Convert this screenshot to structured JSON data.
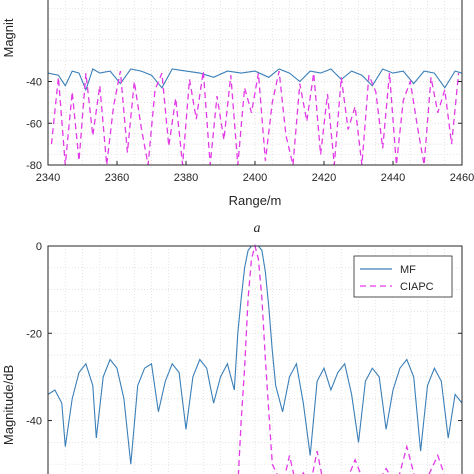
{
  "colors": {
    "mf": "#3a7fb8",
    "ciapc": "#e23ae6",
    "grid": "#d9d9d9",
    "axis": "#262626"
  },
  "chart_data": [
    {
      "type": "line",
      "panel_label": "",
      "title": "",
      "xlabel": "Range/m",
      "ylabel": "Magnit",
      "xlim": [
        2340,
        2460
      ],
      "ylim": [
        -80,
        0
      ],
      "grid": true,
      "x_ticks": [
        2340,
        2360,
        2380,
        2400,
        2420,
        2440,
        2460
      ],
      "x_tick_labels": [
        "2340",
        "2360",
        "2380",
        "2400",
        "2420",
        "2440",
        "2460"
      ],
      "y_ticks": [
        -40,
        -60,
        -80
      ],
      "y_tick_labels": [
        "-40",
        "-60",
        "-80"
      ],
      "series": [
        {
          "name": "MF",
          "style": "solid",
          "x": [
            2340,
            2343,
            2345,
            2347,
            2349,
            2351,
            2353,
            2355,
            2358,
            2361,
            2364,
            2367,
            2370,
            2373,
            2376,
            2380,
            2384,
            2388,
            2392,
            2396,
            2400,
            2404,
            2407,
            2410,
            2413,
            2416,
            2419,
            2422,
            2425,
            2428,
            2431,
            2434,
            2437,
            2440,
            2443,
            2446,
            2449,
            2452,
            2455,
            2458,
            2460
          ],
          "y": [
            -36,
            -37,
            -42,
            -35,
            -36,
            -44,
            -34,
            -36,
            -35,
            -41,
            -34,
            -35,
            -37,
            -43,
            -34,
            -35,
            -36,
            -38,
            -35,
            -36,
            -35,
            -38,
            -34,
            -36,
            -40,
            -35,
            -36,
            -34,
            -39,
            -35,
            -37,
            -42,
            -34,
            -36,
            -35,
            -41,
            -35,
            -36,
            -43,
            -35,
            -36
          ]
        },
        {
          "name": "CIAPC",
          "style": "dashed",
          "x": [
            2341,
            2343,
            2345,
            2347,
            2349,
            2351,
            2353,
            2355,
            2357,
            2359,
            2361,
            2363,
            2365,
            2367,
            2369,
            2371,
            2373,
            2375,
            2377,
            2379,
            2381,
            2383,
            2385,
            2387,
            2389,
            2391,
            2393,
            2395,
            2397,
            2399,
            2401,
            2403,
            2405,
            2407,
            2409,
            2411,
            2413,
            2415,
            2417,
            2419,
            2421,
            2423,
            2425,
            2427,
            2429,
            2431,
            2433,
            2435,
            2437,
            2439,
            2441,
            2443,
            2445,
            2447,
            2449,
            2451,
            2453,
            2455,
            2457,
            2459
          ],
          "y": [
            -70,
            -38,
            -80,
            -45,
            -78,
            -36,
            -66,
            -42,
            -80,
            -52,
            -35,
            -74,
            -40,
            -62,
            -80,
            -44,
            -36,
            -71,
            -48,
            -80,
            -39,
            -58,
            -35,
            -80,
            -47,
            -68,
            -37,
            -80,
            -43,
            -55,
            -36,
            -78,
            -50,
            -35,
            -66,
            -80,
            -41,
            -59,
            -36,
            -75,
            -46,
            -80,
            -38,
            -63,
            -52,
            -80,
            -37,
            -45,
            -72,
            -36,
            -80,
            -49,
            -40,
            -61,
            -80,
            -38,
            -55,
            -44,
            -70,
            -36
          ]
        }
      ]
    },
    {
      "type": "line",
      "panel_label": "a",
      "title": "",
      "xlabel": "",
      "ylabel": "Magnitude/dB",
      "xlim": [
        2340,
        2460
      ],
      "ylim": [
        -55,
        0
      ],
      "grid": true,
      "y_ticks": [
        0,
        -20,
        -40
      ],
      "y_tick_labels": [
        "0",
        "-20",
        "-40"
      ],
      "legend": {
        "placement": "top-right",
        "entries": [
          "MF",
          "CIAPC"
        ]
      },
      "series": [
        {
          "name": "MF",
          "style": "solid",
          "x": [
            2340,
            2342,
            2344,
            2345,
            2347,
            2349,
            2351,
            2353,
            2354,
            2356,
            2358,
            2360,
            2362,
            2364,
            2366,
            2368,
            2370,
            2372,
            2374,
            2376,
            2378,
            2380,
            2382,
            2384,
            2386,
            2388,
            2390,
            2392,
            2394,
            2395,
            2396,
            2397,
            2398,
            2399,
            2400,
            2401,
            2402,
            2403,
            2404,
            2405,
            2406,
            2408,
            2410,
            2412,
            2414,
            2416,
            2418,
            2420,
            2422,
            2424,
            2426,
            2428,
            2430,
            2432,
            2434,
            2436,
            2438,
            2440,
            2442,
            2444,
            2446,
            2448,
            2450,
            2452,
            2454,
            2456,
            2458,
            2460
          ],
          "y": [
            -34,
            -33,
            -36,
            -46,
            -35,
            -29,
            -27,
            -32,
            -44,
            -30,
            -26,
            -28,
            -35,
            -50,
            -32,
            -28,
            -27,
            -38,
            -31,
            -27,
            -29,
            -42,
            -30,
            -26,
            -28,
            -36,
            -30,
            -27,
            -33,
            -20,
            -12,
            -5,
            -1,
            0,
            0,
            0,
            -1,
            -6,
            -14,
            -24,
            -32,
            -38,
            -30,
            -27,
            -36,
            -48,
            -31,
            -28,
            -33,
            -29,
            -27,
            -34,
            -45,
            -31,
            -28,
            -30,
            -42,
            -33,
            -28,
            -26,
            -30,
            -47,
            -32,
            -28,
            -31,
            -44,
            -34,
            -36
          ]
        },
        {
          "name": "CIAPC",
          "style": "dashed",
          "x": [
            2395,
            2396,
            2397,
            2398,
            2399,
            2400,
            2401,
            2402,
            2403,
            2404,
            2405,
            2408,
            2410,
            2412,
            2414,
            2416,
            2418,
            2420,
            2423,
            2426,
            2429,
            2432,
            2435,
            2438,
            2441,
            2444,
            2447,
            2450,
            2453,
            2456
          ],
          "y": [
            -55,
            -40,
            -28,
            -12,
            -3,
            0,
            -3,
            -12,
            -26,
            -38,
            -50,
            -55,
            -48,
            -55,
            -52,
            -55,
            -47,
            -55,
            -53,
            -55,
            -49,
            -55,
            -55,
            -51,
            -55,
            -46,
            -55,
            -53,
            -48,
            -55
          ]
        }
      ]
    }
  ]
}
